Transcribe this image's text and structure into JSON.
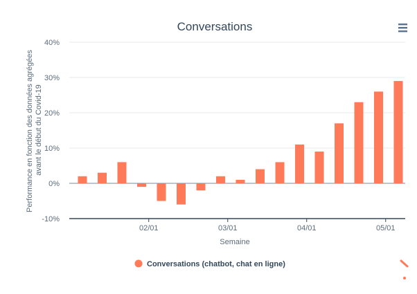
{
  "chart_data": {
    "type": "bar",
    "title": "Conversations",
    "xlabel": "Semaine",
    "ylabel": "Performance en fonction des données agrégées avant le début du Covid-19",
    "ylabel_lines": [
      "Performance en fonction des données agrégées",
      "avant le début du Covid-19"
    ],
    "ylim": [
      -10,
      40
    ],
    "yticks": [
      -10,
      0,
      10,
      20,
      30,
      40
    ],
    "ytick_labels": [
      "-10%",
      "0%",
      "10%",
      "20%",
      "30%",
      "40%"
    ],
    "xtick_labels": [
      "02/01",
      "03/01",
      "04/01",
      "05/01"
    ],
    "values": [
      2,
      3,
      6,
      -1,
      -5,
      -6,
      -2,
      2,
      1,
      4,
      6,
      11,
      9,
      17,
      23,
      26,
      29
    ],
    "series": [
      {
        "name": "Conversations (chatbot, chat en ligne)",
        "color": "#ff7a59"
      }
    ],
    "grid": true,
    "legend_position": "bottom"
  },
  "colors": {
    "bar": "#ff7a59",
    "title": "#33475b",
    "menu_icon": "#5b7390"
  },
  "icons": {
    "menu": "hamburger-menu-icon"
  }
}
